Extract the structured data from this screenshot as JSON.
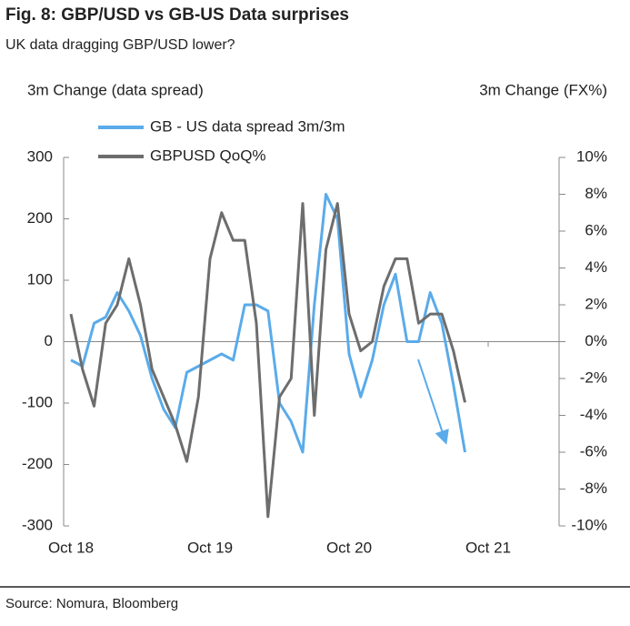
{
  "chart_data": {
    "type": "line",
    "title": "Fig. 8: GBP/USD vs GB-US Data surprises",
    "subtitle": "UK data dragging GBP/USD lower?",
    "y_label": "3m Change (data spread)",
    "y2_label": "3m Change (FX%)",
    "source": "Source: Nomura, Bloomberg",
    "categories": [
      "Oct 18",
      null,
      null,
      null,
      null,
      null,
      null,
      null,
      null,
      null,
      null,
      null,
      "Oct 19",
      null,
      null,
      null,
      null,
      null,
      null,
      null,
      null,
      null,
      null,
      null,
      "Oct 20",
      null,
      null,
      null,
      null,
      null,
      null,
      null,
      null,
      null,
      null,
      null,
      "Oct 21",
      null,
      null,
      null,
      null,
      null,
      null
    ],
    "series": [
      {
        "name": "GB - US data spread 3m/3m",
        "color": "#5aabea",
        "axis": "y",
        "values": [
          -30,
          -40,
          30,
          40,
          80,
          50,
          10,
          -60,
          -110,
          -140,
          -50,
          -40,
          -30,
          -20,
          -30,
          60,
          60,
          50,
          -100,
          -130,
          -180,
          60,
          240,
          200,
          -20,
          -90,
          -30,
          60,
          110,
          0,
          0,
          80,
          30,
          -70,
          -180,
          null,
          null,
          null,
          null,
          null,
          null,
          null,
          null
        ]
      },
      {
        "name": "GBPUSD QoQ%",
        "color": "#6d6d6d",
        "axis": "y2",
        "values": [
          1.5,
          -1.5,
          -3.5,
          1,
          2,
          4.5,
          2,
          -1.5,
          -3,
          -4.5,
          -6.5,
          -3,
          4.5,
          7,
          5.5,
          5.5,
          1,
          -9.5,
          -3,
          -2,
          7.5,
          -4,
          5,
          7.5,
          1.5,
          -0.5,
          0,
          3,
          4.5,
          4.5,
          1,
          1.5,
          1.5,
          -0.5,
          -3.3,
          null,
          null,
          null,
          null,
          null,
          null,
          null,
          null
        ]
      }
    ],
    "ylim": [
      -300,
      300
    ],
    "yticks": [
      -300,
      -200,
      -100,
      0,
      100,
      200,
      300
    ],
    "y2lim": [
      -10,
      10
    ],
    "y2ticks": [
      {
        "value": -10,
        "label": "-10%"
      },
      {
        "value": -8,
        "label": "-8%"
      },
      {
        "value": -6,
        "label": "-6%"
      },
      {
        "value": -4,
        "label": "-4%"
      },
      {
        "value": -2,
        "label": "-2%"
      },
      {
        "value": 0,
        "label": "0%"
      },
      {
        "value": 2,
        "label": "2%"
      },
      {
        "value": 4,
        "label": "4%"
      },
      {
        "value": 6,
        "label": "6%"
      },
      {
        "value": 8,
        "label": "8%"
      },
      {
        "value": 10,
        "label": "10%"
      }
    ]
  }
}
